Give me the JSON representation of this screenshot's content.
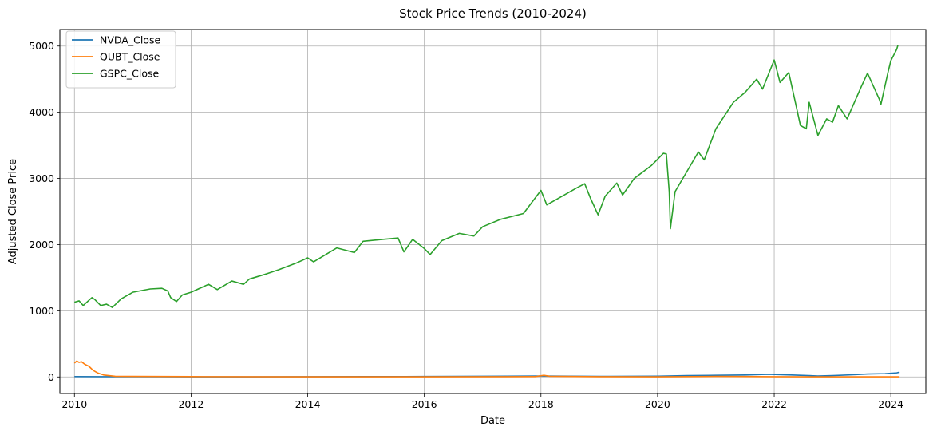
{
  "chart_data": {
    "type": "line",
    "title": "Stock Price Trends (2010-2024)",
    "xlabel": "Date",
    "ylabel": "Adjusted Close Price",
    "xlim": [
      2009.75,
      2024.6
    ],
    "ylim": [
      -250,
      5250
    ],
    "x_ticks": [
      2010,
      2012,
      2014,
      2016,
      2018,
      2020,
      2022,
      2024
    ],
    "x_tick_labels": [
      "2010",
      "2012",
      "2014",
      "2016",
      "2018",
      "2020",
      "2022",
      "2024"
    ],
    "y_ticks": [
      0,
      1000,
      2000,
      3000,
      4000,
      5000
    ],
    "y_tick_labels": [
      "0",
      "1000",
      "2000",
      "3000",
      "4000",
      "5000"
    ],
    "grid": true,
    "legend_position": "top-left",
    "series": [
      {
        "name": "NVDA_Close",
        "color": "#1f77b4",
        "points": [
          [
            2010.0,
            5
          ],
          [
            2011.0,
            4
          ],
          [
            2012.0,
            3
          ],
          [
            2013.0,
            3
          ],
          [
            2014.0,
            4
          ],
          [
            2015.0,
            5
          ],
          [
            2016.0,
            7
          ],
          [
            2017.0,
            10
          ],
          [
            2018.0,
            15
          ],
          [
            2018.75,
            10
          ],
          [
            2019.0,
            8
          ],
          [
            2020.0,
            12
          ],
          [
            2020.5,
            20
          ],
          [
            2021.0,
            25
          ],
          [
            2021.5,
            30
          ],
          [
            2021.9,
            40
          ],
          [
            2022.3,
            30
          ],
          [
            2022.75,
            15
          ],
          [
            2023.0,
            20
          ],
          [
            2023.4,
            35
          ],
          [
            2023.6,
            45
          ],
          [
            2023.9,
            50
          ],
          [
            2024.1,
            62
          ],
          [
            2024.15,
            72
          ]
        ]
      },
      {
        "name": "QUBT_Close",
        "color": "#ff7f0e",
        "points": [
          [
            2010.0,
            210
          ],
          [
            2010.04,
            240
          ],
          [
            2010.08,
            220
          ],
          [
            2010.12,
            230
          ],
          [
            2010.18,
            190
          ],
          [
            2010.25,
            160
          ],
          [
            2010.32,
            100
          ],
          [
            2010.4,
            60
          ],
          [
            2010.5,
            30
          ],
          [
            2010.7,
            10
          ],
          [
            2011.0,
            8
          ],
          [
            2012.0,
            5
          ],
          [
            2014.0,
            3
          ],
          [
            2016.0,
            3
          ],
          [
            2017.9,
            5
          ],
          [
            2018.05,
            25
          ],
          [
            2018.15,
            10
          ],
          [
            2019.0,
            4
          ],
          [
            2020.0,
            3
          ],
          [
            2021.0,
            8
          ],
          [
            2022.0,
            4
          ],
          [
            2023.0,
            2
          ],
          [
            2024.15,
            2
          ]
        ]
      },
      {
        "name": "GSPC_Close",
        "color": "#2ca02c",
        "points": [
          [
            2010.0,
            1130
          ],
          [
            2010.08,
            1150
          ],
          [
            2010.15,
            1080
          ],
          [
            2010.3,
            1200
          ],
          [
            2010.35,
            1170
          ],
          [
            2010.45,
            1080
          ],
          [
            2010.55,
            1100
          ],
          [
            2010.65,
            1050
          ],
          [
            2010.8,
            1180
          ],
          [
            2011.0,
            1280
          ],
          [
            2011.3,
            1330
          ],
          [
            2011.5,
            1340
          ],
          [
            2011.6,
            1300
          ],
          [
            2011.65,
            1200
          ],
          [
            2011.75,
            1140
          ],
          [
            2011.85,
            1240
          ],
          [
            2012.0,
            1280
          ],
          [
            2012.3,
            1400
          ],
          [
            2012.45,
            1320
          ],
          [
            2012.7,
            1450
          ],
          [
            2012.9,
            1400
          ],
          [
            2013.0,
            1480
          ],
          [
            2013.3,
            1560
          ],
          [
            2013.5,
            1620
          ],
          [
            2013.8,
            1720
          ],
          [
            2014.0,
            1800
          ],
          [
            2014.1,
            1740
          ],
          [
            2014.5,
            1950
          ],
          [
            2014.8,
            1880
          ],
          [
            2014.95,
            2050
          ],
          [
            2015.3,
            2080
          ],
          [
            2015.55,
            2100
          ],
          [
            2015.65,
            1890
          ],
          [
            2015.8,
            2080
          ],
          [
            2016.0,
            1940
          ],
          [
            2016.1,
            1850
          ],
          [
            2016.3,
            2060
          ],
          [
            2016.6,
            2170
          ],
          [
            2016.85,
            2130
          ],
          [
            2017.0,
            2270
          ],
          [
            2017.3,
            2380
          ],
          [
            2017.7,
            2470
          ],
          [
            2018.0,
            2820
          ],
          [
            2018.1,
            2600
          ],
          [
            2018.3,
            2700
          ],
          [
            2018.6,
            2850
          ],
          [
            2018.75,
            2920
          ],
          [
            2018.85,
            2700
          ],
          [
            2018.98,
            2450
          ],
          [
            2019.1,
            2730
          ],
          [
            2019.3,
            2930
          ],
          [
            2019.4,
            2750
          ],
          [
            2019.6,
            3000
          ],
          [
            2019.9,
            3200
          ],
          [
            2020.1,
            3380
          ],
          [
            2020.15,
            3370
          ],
          [
            2020.2,
            2800
          ],
          [
            2020.22,
            2240
          ],
          [
            2020.3,
            2800
          ],
          [
            2020.5,
            3100
          ],
          [
            2020.7,
            3400
          ],
          [
            2020.8,
            3280
          ],
          [
            2021.0,
            3750
          ],
          [
            2021.3,
            4150
          ],
          [
            2021.5,
            4300
          ],
          [
            2021.7,
            4500
          ],
          [
            2021.8,
            4350
          ],
          [
            2022.0,
            4790
          ],
          [
            2022.1,
            4450
          ],
          [
            2022.25,
            4600
          ],
          [
            2022.45,
            3800
          ],
          [
            2022.55,
            3750
          ],
          [
            2022.6,
            4150
          ],
          [
            2022.75,
            3650
          ],
          [
            2022.9,
            3900
          ],
          [
            2023.0,
            3850
          ],
          [
            2023.1,
            4100
          ],
          [
            2023.25,
            3900
          ],
          [
            2023.5,
            4400
          ],
          [
            2023.6,
            4590
          ],
          [
            2023.8,
            4200
          ],
          [
            2023.83,
            4120
          ],
          [
            2023.95,
            4600
          ],
          [
            2024.0,
            4780
          ],
          [
            2024.1,
            4950
          ],
          [
            2024.12,
            5010
          ]
        ]
      }
    ]
  }
}
